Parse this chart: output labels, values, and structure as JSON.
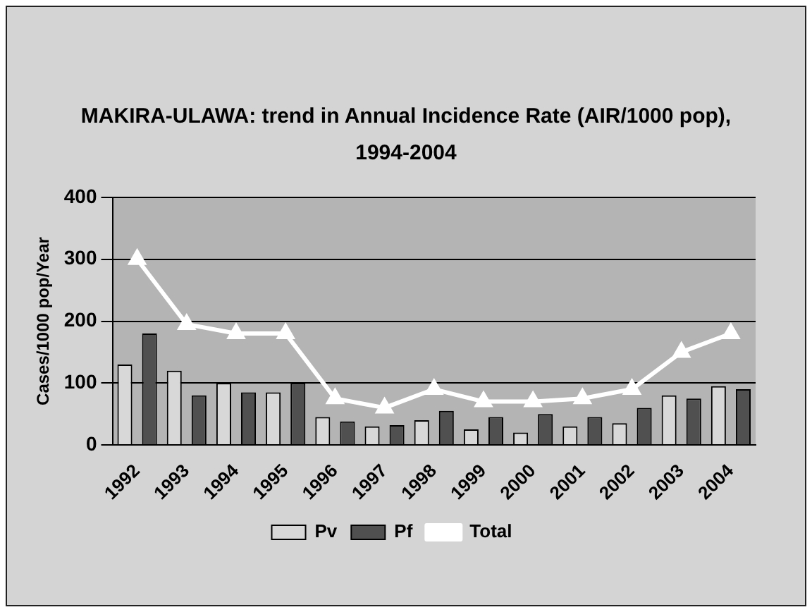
{
  "chart_data": {
    "type": "bar",
    "title": "MAKIRA-ULAWA: trend in Annual Incidence Rate (AIR/1000 pop),",
    "subtitle": "1994-2004",
    "ylabel": "Cases/1000 pop/Year",
    "categories": [
      "1992",
      "1993",
      "1994",
      "1995",
      "1996",
      "1997",
      "1998",
      "1999",
      "2000",
      "2001",
      "2002",
      "2003",
      "2004"
    ],
    "series": [
      {
        "name": "Pv",
        "color": "#d8d8d8",
        "values": [
          130,
          120,
          100,
          85,
          45,
          30,
          40,
          25,
          20,
          30,
          35,
          80,
          95
        ]
      },
      {
        "name": "Pf",
        "color": "#505050",
        "values": [
          180,
          80,
          85,
          100,
          38,
          32,
          55,
          45,
          50,
          45,
          60,
          75,
          90
        ]
      },
      {
        "name": "Total",
        "type": "line",
        "color": "#ffffff",
        "values": [
          300,
          195,
          180,
          180,
          75,
          60,
          90,
          70,
          70,
          75,
          90,
          150,
          180
        ]
      }
    ],
    "ylim": [
      0,
      400
    ],
    "yticks": [
      0,
      100,
      200,
      300,
      400
    ],
    "grid": "y",
    "legend": "bottom",
    "marker": "triangle"
  }
}
